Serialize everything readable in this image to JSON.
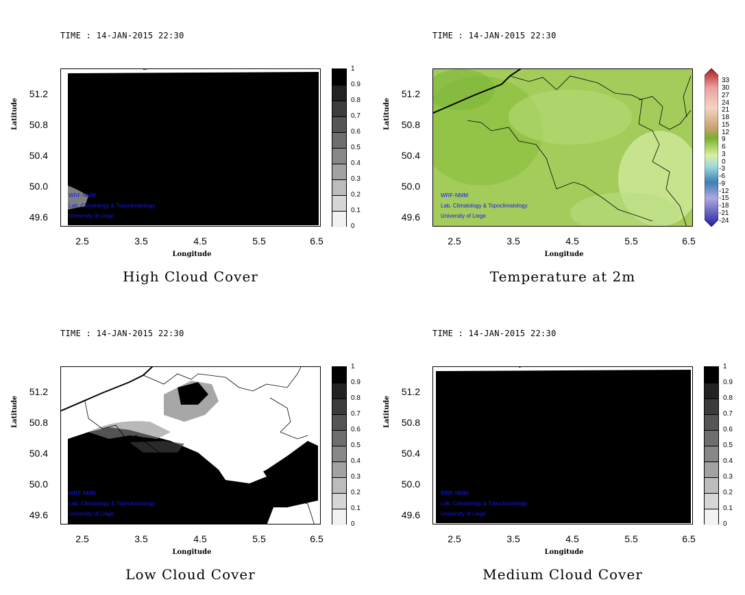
{
  "panels": [
    {
      "id": "high-cloud",
      "time_label": "TIME : 14-JAN-2015 22:30",
      "title": "High Cloud Cover",
      "ylabel": "Latitude",
      "xlabel": "Longitude",
      "yticks": [
        "51.2",
        "50.8",
        "50.4",
        "50.0",
        "49.6"
      ],
      "xticks": [
        "2.5",
        "3.5",
        "4.5",
        "5.5",
        "6.5"
      ],
      "colorbar_labels": [
        "1",
        "0.9",
        "0.8",
        "0.7",
        "0.6",
        "0.5",
        "0.4",
        "0.3",
        "0.2",
        "0.1",
        "0"
      ]
    },
    {
      "id": "temperature-2m",
      "time_label": "TIME : 14-JAN-2015 22:30",
      "title": "Temperature at 2m",
      "ylabel": "Latitude",
      "xlabel": "Longitude",
      "yticks": [
        "51.2",
        "50.8",
        "50.4",
        "50.0",
        "49.6"
      ],
      "xticks": [
        "2.5",
        "3.5",
        "4.5",
        "5.5",
        "6.5"
      ],
      "colorbar_labels": [
        "33",
        "30",
        "27",
        "24",
        "21",
        "18",
        "15",
        "12",
        "9",
        "6",
        "3",
        "0",
        "-3",
        "-6",
        "-9",
        "-12",
        "-15",
        "-18",
        "-21",
        "-24"
      ]
    },
    {
      "id": "low-cloud",
      "time_label": "TIME : 14-JAN-2015 22:30",
      "title": "Low Cloud Cover",
      "ylabel": "Latitude",
      "xlabel": "Longitude",
      "yticks": [
        "51.2",
        "50.8",
        "50.4",
        "50.0",
        "49.6"
      ],
      "xticks": [
        "2.5",
        "3.5",
        "4.5",
        "5.5",
        "6.5"
      ],
      "colorbar_labels": [
        "1",
        "0.9",
        "0.8",
        "0.7",
        "0.6",
        "0.5",
        "0.4",
        "0.3",
        "0.2",
        "0.1",
        "0"
      ]
    },
    {
      "id": "medium-cloud",
      "time_label": "TIME : 14-JAN-2015 22:30",
      "title": "Medium Cloud Cover",
      "ylabel": "Latitude",
      "xlabel": "Longitude",
      "yticks": [
        "51.2",
        "50.8",
        "50.4",
        "50.0",
        "49.6"
      ],
      "xticks": [
        "2.5",
        "3.5",
        "4.5",
        "5.5",
        "6.5"
      ],
      "colorbar_labels": [
        "1",
        "0.9",
        "0.8",
        "0.7",
        "0.6",
        "0.5",
        "0.4",
        "0.3",
        "0.2",
        "0.1",
        "0"
      ]
    }
  ],
  "credits": [
    "WRF-NMM",
    "Lab. Climatology & Topoclimatology",
    "University of Liege"
  ],
  "colors": {
    "credit_text": "#1515ff",
    "cloud_full": "#000000",
    "temp_base": "#a8d060",
    "temp_warm": "#8cc040",
    "temp_cool": "#c8e890"
  }
}
